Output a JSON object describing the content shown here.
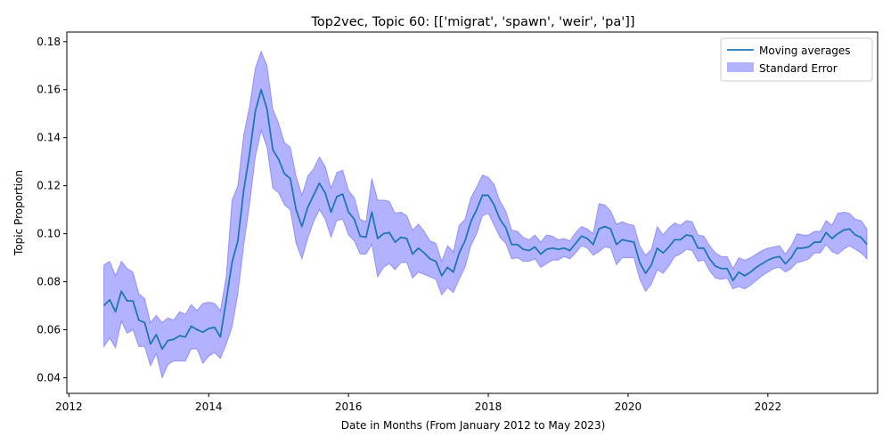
{
  "chart_data": {
    "type": "line",
    "title": "Top2vec, Topic 60: [['migrat', 'spawn', 'weir', 'pa']]",
    "xlabel": "Date in Months (From January 2012 to May 2023)",
    "ylabel": "Topic Proportion",
    "xlim": [
      2011.97,
      2023.57
    ],
    "ylim": [
      0.0335,
      0.184
    ],
    "x_ticks": [
      2012,
      2014,
      2016,
      2018,
      2020,
      2022
    ],
    "y_ticks": [
      0.04,
      0.06,
      0.08,
      0.1,
      0.12,
      0.14,
      0.16,
      0.18
    ],
    "x_tick_labels": [
      "2012",
      "2014",
      "2016",
      "2018",
      "2020",
      "2022"
    ],
    "y_tick_labels": [
      "0.04",
      "0.06",
      "0.08",
      "0.10",
      "0.12",
      "0.14",
      "0.16",
      "0.18"
    ],
    "grid": false,
    "legend_position": "top-right",
    "x_start": "2012-07",
    "series": [
      {
        "name": "Moving averages",
        "color": "#1f77b4",
        "values": [
          0.07,
          0.0725,
          0.0675,
          0.076,
          0.072,
          0.072,
          0.064,
          0.063,
          0.054,
          0.058,
          0.052,
          0.0555,
          0.056,
          0.0575,
          0.057,
          0.0615,
          0.06,
          0.059,
          0.0605,
          0.061,
          0.057,
          0.072,
          0.088,
          0.097,
          0.118,
          0.133,
          0.151,
          0.16,
          0.152,
          0.135,
          0.131,
          0.125,
          0.123,
          0.11,
          0.103,
          0.111,
          0.116,
          0.121,
          0.117,
          0.109,
          0.1155,
          0.1165,
          0.109,
          0.106,
          0.099,
          0.0985,
          0.109,
          0.098,
          0.1,
          0.1005,
          0.0965,
          0.0985,
          0.098,
          0.0915,
          0.094,
          0.092,
          0.0895,
          0.0885,
          0.0825,
          0.086,
          0.084,
          0.092,
          0.097,
          0.105,
          0.11,
          0.116,
          0.116,
          0.112,
          0.106,
          0.1025,
          0.0955,
          0.0955,
          0.0935,
          0.093,
          0.0945,
          0.0915,
          0.0935,
          0.094,
          0.0935,
          0.094,
          0.093,
          0.096,
          0.099,
          0.098,
          0.0955,
          0.102,
          0.103,
          0.102,
          0.0955,
          0.0975,
          0.097,
          0.0965,
          0.088,
          0.0835,
          0.087,
          0.094,
          0.092,
          0.0945,
          0.0975,
          0.0975,
          0.0995,
          0.099,
          0.094,
          0.094,
          0.0895,
          0.0865,
          0.0855,
          0.0855,
          0.0805,
          0.084,
          0.0825,
          0.084,
          0.086,
          0.0875,
          0.089,
          0.09,
          0.0905,
          0.0875,
          0.09,
          0.094,
          0.094,
          0.0945,
          0.0965,
          0.0965,
          0.1005,
          0.098,
          0.1,
          0.1015,
          0.102,
          0.0995,
          0.0985,
          0.0955
        ]
      },
      {
        "name": "Standard Error",
        "color": "#0000ff",
        "opacity": 0.3,
        "upper": [
          0.087,
          0.0885,
          0.0825,
          0.0885,
          0.0855,
          0.084,
          0.075,
          0.073,
          0.063,
          0.066,
          0.063,
          0.065,
          0.064,
          0.0675,
          0.0665,
          0.0705,
          0.068,
          0.071,
          0.0715,
          0.071,
          0.068,
          0.082,
          0.114,
          0.12,
          0.141,
          0.153,
          0.169,
          0.176,
          0.17,
          0.152,
          0.146,
          0.138,
          0.136,
          0.124,
          0.116,
          0.124,
          0.127,
          0.132,
          0.128,
          0.119,
          0.1255,
          0.1265,
          0.118,
          0.115,
          0.106,
          0.105,
          0.123,
          0.114,
          0.114,
          0.1135,
          0.1085,
          0.109,
          0.1075,
          0.1015,
          0.104,
          0.101,
          0.097,
          0.096,
          0.0885,
          0.095,
          0.0925,
          0.1035,
          0.106,
          0.115,
          0.1195,
          0.1245,
          0.1235,
          0.1205,
          0.1135,
          0.1095,
          0.1015,
          0.101,
          0.0985,
          0.0975,
          0.0995,
          0.0965,
          0.0995,
          0.099,
          0.0975,
          0.098,
          0.097,
          0.1005,
          0.103,
          0.102,
          0.1,
          0.1125,
          0.112,
          0.1095,
          0.104,
          0.105,
          0.104,
          0.1035,
          0.095,
          0.091,
          0.0935,
          0.103,
          0.0995,
          0.1025,
          0.1045,
          0.1035,
          0.1055,
          0.105,
          0.0995,
          0.099,
          0.095,
          0.092,
          0.0905,
          0.0905,
          0.0855,
          0.09,
          0.089,
          0.09,
          0.0915,
          0.093,
          0.094,
          0.0945,
          0.095,
          0.0915,
          0.095,
          0.1,
          0.0995,
          0.0995,
          0.101,
          0.101,
          0.1055,
          0.1035,
          0.1085,
          0.109,
          0.1085,
          0.106,
          0.1055,
          0.102
        ],
        "lower": [
          0.053,
          0.0565,
          0.0525,
          0.0635,
          0.0585,
          0.06,
          0.053,
          0.053,
          0.045,
          0.05,
          0.04,
          0.0455,
          0.047,
          0.047,
          0.047,
          0.052,
          0.052,
          0.046,
          0.049,
          0.0505,
          0.048,
          0.054,
          0.061,
          0.075,
          0.095,
          0.112,
          0.132,
          0.143,
          0.136,
          0.119,
          0.117,
          0.112,
          0.11,
          0.096,
          0.0895,
          0.098,
          0.105,
          0.11,
          0.106,
          0.0985,
          0.1055,
          0.106,
          0.0995,
          0.097,
          0.0915,
          0.0915,
          0.0955,
          0.082,
          0.086,
          0.0875,
          0.085,
          0.088,
          0.088,
          0.0815,
          0.084,
          0.083,
          0.082,
          0.081,
          0.0745,
          0.0775,
          0.0755,
          0.081,
          0.086,
          0.095,
          0.1,
          0.1075,
          0.1085,
          0.1035,
          0.0985,
          0.096,
          0.0895,
          0.09,
          0.0885,
          0.0885,
          0.0895,
          0.086,
          0.0875,
          0.089,
          0.089,
          0.0905,
          0.0895,
          0.092,
          0.095,
          0.094,
          0.091,
          0.0925,
          0.0945,
          0.094,
          0.087,
          0.09,
          0.09,
          0.09,
          0.081,
          0.076,
          0.079,
          0.085,
          0.0835,
          0.0865,
          0.0905,
          0.0915,
          0.0935,
          0.093,
          0.0885,
          0.089,
          0.0845,
          0.0815,
          0.081,
          0.0815,
          0.077,
          0.078,
          0.077,
          0.0785,
          0.0805,
          0.0825,
          0.084,
          0.0855,
          0.086,
          0.084,
          0.0855,
          0.088,
          0.0885,
          0.0895,
          0.092,
          0.092,
          0.0955,
          0.0925,
          0.0915,
          0.0935,
          0.095,
          0.0935,
          0.092,
          0.0895
        ]
      }
    ]
  }
}
